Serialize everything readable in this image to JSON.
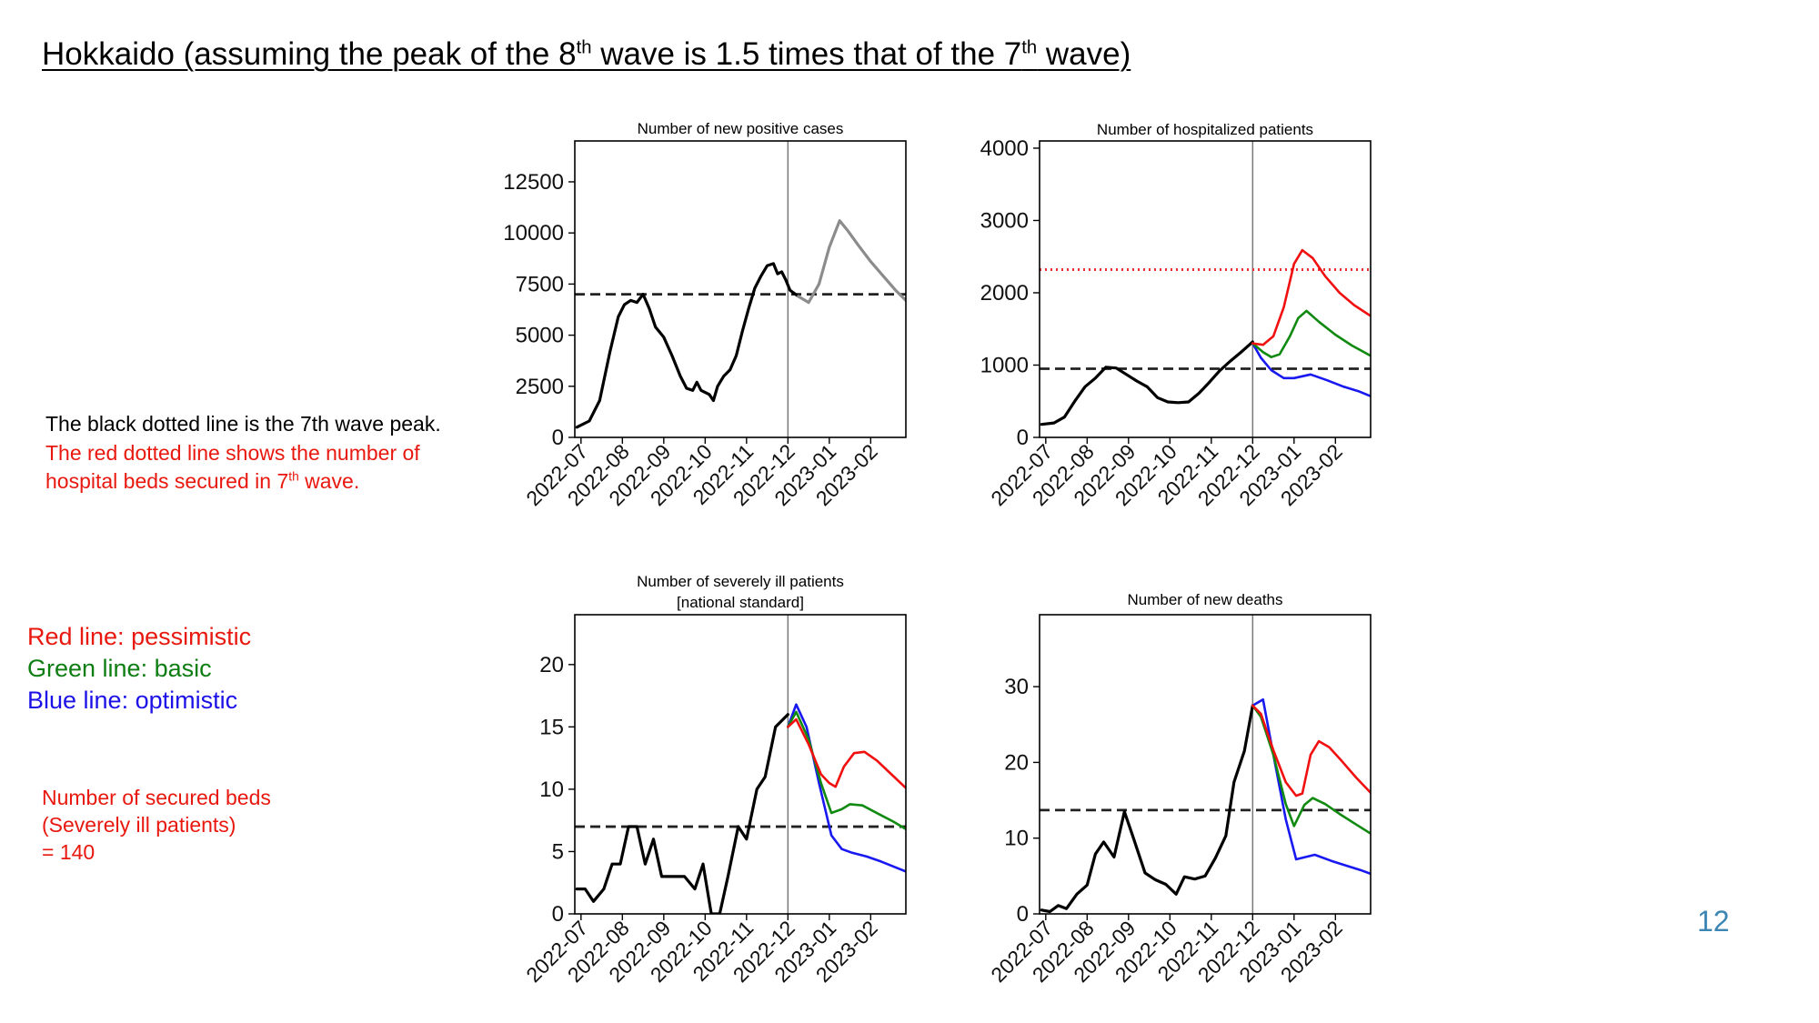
{
  "slide": {
    "title_pre": "Hokkaido (assuming the peak of the 8",
    "title_sup1": "th",
    "title_mid": " wave is 1.5 times that of the 7",
    "title_sup2": "th",
    "title_post": " wave)",
    "page_number": "12"
  },
  "notes": {
    "black_line": "The black dotted line is the 7th wave peak.",
    "red_line_1": "The red dotted line shows the number of",
    "red_line_2_pre": "hospital beds secured in 7",
    "red_line_2_sup": "th",
    "red_line_2_post": " wave."
  },
  "legend": {
    "red": "Red line: pessimistic",
    "green": "Green line: basic",
    "blue": "Blue line: optimistic"
  },
  "beds_note": {
    "line1": "Number of secured beds",
    "line2": "(Severely ill patients)",
    "line3": "= 140"
  },
  "colors": {
    "observed": "#000000",
    "projection_gray": "#8c8c8c",
    "pessimistic": "#f01010",
    "basic": "#108a10",
    "optimistic": "#1818f0",
    "reference_dashed": "#222222",
    "beds_dotted": "#f03030"
  },
  "chart_data": [
    {
      "id": "positive",
      "type": "line",
      "title": [
        "Number of new positive cases"
      ],
      "x_ticks": [
        "2022-07",
        "2022-08",
        "2022-09",
        "2022-10",
        "2022-11",
        "2022-12",
        "2023-01",
        "2023-02"
      ],
      "x_range": [
        -0.15,
        7.85
      ],
      "divider_x": 5.0,
      "y_ticks": [
        "0",
        "2500",
        "5000",
        "7500",
        "10000",
        "12500"
      ],
      "y_tick_values": [
        0,
        2500,
        5000,
        7500,
        10000,
        12500
      ],
      "ylim": [
        0,
        14500
      ],
      "reference_line": 7000,
      "series": [
        {
          "role": "observed",
          "points": [
            [
              -0.1,
              500
            ],
            [
              0.2,
              800
            ],
            [
              0.45,
              1800
            ],
            [
              0.7,
              4200
            ],
            [
              0.9,
              5900
            ],
            [
              1.05,
              6500
            ],
            [
              1.2,
              6700
            ],
            [
              1.35,
              6600
            ],
            [
              1.5,
              7000
            ],
            [
              1.65,
              6300
            ],
            [
              1.8,
              5400
            ],
            [
              2.0,
              4900
            ],
            [
              2.2,
              4000
            ],
            [
              2.4,
              3000
            ],
            [
              2.55,
              2400
            ],
            [
              2.7,
              2300
            ],
            [
              2.8,
              2700
            ],
            [
              2.9,
              2300
            ],
            [
              3.1,
              2100
            ],
            [
              3.2,
              1800
            ],
            [
              3.3,
              2500
            ],
            [
              3.45,
              3000
            ],
            [
              3.6,
              3300
            ],
            [
              3.75,
              4000
            ],
            [
              3.9,
              5200
            ],
            [
              4.05,
              6300
            ],
            [
              4.2,
              7300
            ],
            [
              4.35,
              7900
            ],
            [
              4.5,
              8400
            ],
            [
              4.65,
              8500
            ],
            [
              4.75,
              8000
            ],
            [
              4.85,
              8100
            ],
            [
              4.95,
              7700
            ],
            [
              5.05,
              7200
            ],
            [
              5.25,
              6900
            ]
          ]
        },
        {
          "role": "projection",
          "points": [
            [
              5.25,
              6900
            ],
            [
              5.5,
              6600
            ],
            [
              5.75,
              7500
            ],
            [
              6.0,
              9300
            ],
            [
              6.25,
              10600
            ],
            [
              6.45,
              10100
            ],
            [
              6.7,
              9400
            ],
            [
              7.0,
              8600
            ],
            [
              7.3,
              7900
            ],
            [
              7.6,
              7200
            ],
            [
              7.85,
              6700
            ]
          ]
        }
      ]
    },
    {
      "id": "hospitalized",
      "type": "line",
      "title": [
        "Number of hospitalized patients"
      ],
      "x_ticks": [
        "2022-07",
        "2022-08",
        "2022-09",
        "2022-10",
        "2022-11",
        "2022-12",
        "2023-01",
        "2023-02"
      ],
      "x_range": [
        -0.15,
        7.85
      ],
      "divider_x": 5.0,
      "y_ticks": [
        "0",
        "1000",
        "2000",
        "3000",
        "4000"
      ],
      "y_tick_values": [
        0,
        1000,
        2000,
        3000,
        4000
      ],
      "ylim": [
        0,
        4100
      ],
      "reference_line": 950,
      "beds_line": 2320,
      "series": [
        {
          "role": "observed",
          "points": [
            [
              -0.1,
              180
            ],
            [
              0.2,
              200
            ],
            [
              0.45,
              280
            ],
            [
              0.7,
              500
            ],
            [
              0.95,
              700
            ],
            [
              1.2,
              820
            ],
            [
              1.45,
              970
            ],
            [
              1.7,
              960
            ],
            [
              1.95,
              870
            ],
            [
              2.2,
              780
            ],
            [
              2.45,
              700
            ],
            [
              2.7,
              550
            ],
            [
              2.95,
              490
            ],
            [
              3.2,
              480
            ],
            [
              3.45,
              490
            ],
            [
              3.7,
              610
            ],
            [
              3.95,
              760
            ],
            [
              4.2,
              920
            ],
            [
              4.45,
              1050
            ],
            [
              4.7,
              1170
            ],
            [
              5.0,
              1320
            ]
          ]
        },
        {
          "role": "pessimistic",
          "points": [
            [
              5.0,
              1300
            ],
            [
              5.25,
              1280
            ],
            [
              5.5,
              1400
            ],
            [
              5.75,
              1800
            ],
            [
              6.0,
              2400
            ],
            [
              6.2,
              2590
            ],
            [
              6.45,
              2480
            ],
            [
              6.75,
              2230
            ],
            [
              7.1,
              2000
            ],
            [
              7.45,
              1830
            ],
            [
              7.85,
              1680
            ]
          ]
        },
        {
          "role": "basic",
          "points": [
            [
              5.0,
              1300
            ],
            [
              5.25,
              1180
            ],
            [
              5.45,
              1110
            ],
            [
              5.65,
              1150
            ],
            [
              5.9,
              1400
            ],
            [
              6.1,
              1650
            ],
            [
              6.3,
              1750
            ],
            [
              6.6,
              1600
            ],
            [
              7.0,
              1420
            ],
            [
              7.4,
              1270
            ],
            [
              7.85,
              1130
            ]
          ]
        },
        {
          "role": "optimistic",
          "points": [
            [
              5.0,
              1300
            ],
            [
              5.2,
              1100
            ],
            [
              5.45,
              930
            ],
            [
              5.75,
              820
            ],
            [
              6.0,
              820
            ],
            [
              6.4,
              870
            ],
            [
              6.8,
              790
            ],
            [
              7.2,
              700
            ],
            [
              7.55,
              640
            ],
            [
              7.85,
              570
            ]
          ]
        }
      ]
    },
    {
      "id": "severe",
      "type": "line",
      "title": [
        "Number of severely ill patients",
        "[national standard]"
      ],
      "x_ticks": [
        "2022-07",
        "2022-08",
        "2022-09",
        "2022-10",
        "2022-11",
        "2022-12",
        "2023-01",
        "2023-02"
      ],
      "x_range": [
        -0.15,
        7.85
      ],
      "divider_x": 5.0,
      "y_ticks": [
        "0",
        "5",
        "10",
        "15",
        "20"
      ],
      "y_tick_values": [
        0,
        5,
        10,
        15,
        20
      ],
      "ylim": [
        0,
        24
      ],
      "reference_line": 7,
      "series": [
        {
          "role": "observed",
          "points": [
            [
              -0.1,
              2
            ],
            [
              0.1,
              2
            ],
            [
              0.3,
              1
            ],
            [
              0.55,
              2
            ],
            [
              0.75,
              4
            ],
            [
              0.95,
              4
            ],
            [
              1.15,
              7
            ],
            [
              1.35,
              7
            ],
            [
              1.55,
              4
            ],
            [
              1.75,
              6
            ],
            [
              1.95,
              3
            ],
            [
              2.2,
              3
            ],
            [
              2.5,
              3
            ],
            [
              2.75,
              2
            ],
            [
              2.95,
              4
            ],
            [
              3.15,
              0
            ],
            [
              3.35,
              0
            ],
            [
              3.55,
              3
            ],
            [
              3.8,
              7
            ],
            [
              4.0,
              6
            ],
            [
              4.25,
              10
            ],
            [
              4.45,
              11
            ],
            [
              4.7,
              15
            ],
            [
              5.0,
              16
            ]
          ]
        },
        {
          "role": "pessimistic",
          "points": [
            [
              5.0,
              15
            ],
            [
              5.2,
              15.6
            ],
            [
              5.5,
              13.6
            ],
            [
              5.8,
              11.2
            ],
            [
              6.0,
              10.5
            ],
            [
              6.15,
              10.2
            ],
            [
              6.35,
              11.8
            ],
            [
              6.6,
              12.9
            ],
            [
              6.85,
              13.0
            ],
            [
              7.15,
              12.3
            ],
            [
              7.5,
              11.2
            ],
            [
              7.85,
              10.1
            ]
          ]
        },
        {
          "role": "basic",
          "points": [
            [
              5.0,
              15
            ],
            [
              5.2,
              16.2
            ],
            [
              5.5,
              14
            ],
            [
              5.8,
              10.5
            ],
            [
              6.05,
              8.1
            ],
            [
              6.3,
              8.4
            ],
            [
              6.5,
              8.8
            ],
            [
              6.8,
              8.7
            ],
            [
              7.2,
              8.0
            ],
            [
              7.55,
              7.4
            ],
            [
              7.85,
              6.8
            ]
          ]
        },
        {
          "role": "optimistic",
          "points": [
            [
              5.0,
              15
            ],
            [
              5.2,
              16.8
            ],
            [
              5.45,
              15
            ],
            [
              5.75,
              10.5
            ],
            [
              6.05,
              6.3
            ],
            [
              6.3,
              5.2
            ],
            [
              6.55,
              4.9
            ],
            [
              6.9,
              4.6
            ],
            [
              7.25,
              4.2
            ],
            [
              7.55,
              3.8
            ],
            [
              7.85,
              3.4
            ]
          ]
        }
      ]
    },
    {
      "id": "deaths",
      "type": "line",
      "title": [
        "Number of new deaths"
      ],
      "x_ticks": [
        "2022-07",
        "2022-08",
        "2022-09",
        "2022-10",
        "2022-11",
        "2022-12",
        "2023-01",
        "2023-02"
      ],
      "x_range": [
        -0.15,
        7.85
      ],
      "divider_x": 5.0,
      "y_ticks": [
        "0",
        "10",
        "20",
        "30"
      ],
      "y_tick_values": [
        0,
        10,
        20,
        30
      ],
      "ylim": [
        0,
        39.5
      ],
      "reference_line": 13.7,
      "series": [
        {
          "role": "observed",
          "points": [
            [
              -0.1,
              0.5
            ],
            [
              0.1,
              0.3
            ],
            [
              0.3,
              1.1
            ],
            [
              0.5,
              0.7
            ],
            [
              0.75,
              2.6
            ],
            [
              1.0,
              3.8
            ],
            [
              1.2,
              7.9
            ],
            [
              1.4,
              9.5
            ],
            [
              1.65,
              7.5
            ],
            [
              1.9,
              13.5
            ],
            [
              2.1,
              10.3
            ],
            [
              2.4,
              5.4
            ],
            [
              2.65,
              4.5
            ],
            [
              2.9,
              3.9
            ],
            [
              3.15,
              2.6
            ],
            [
              3.35,
              4.9
            ],
            [
              3.6,
              4.6
            ],
            [
              3.85,
              5.0
            ],
            [
              4.1,
              7.4
            ],
            [
              4.35,
              10.3
            ],
            [
              4.55,
              17.4
            ],
            [
              4.8,
              21.5
            ],
            [
              5.0,
              27.5
            ]
          ]
        },
        {
          "role": "pessimistic",
          "points": [
            [
              5.0,
              27.5
            ],
            [
              5.2,
              26.4
            ],
            [
              5.5,
              21.6
            ],
            [
              5.8,
              17.4
            ],
            [
              6.05,
              15.6
            ],
            [
              6.2,
              15.9
            ],
            [
              6.4,
              21.0
            ],
            [
              6.6,
              22.8
            ],
            [
              6.85,
              22.0
            ],
            [
              7.15,
              20.2
            ],
            [
              7.5,
              18.0
            ],
            [
              7.85,
              16.0
            ]
          ]
        },
        {
          "role": "basic",
          "points": [
            [
              5.0,
              27.5
            ],
            [
              5.2,
              26.0
            ],
            [
              5.5,
              21.0
            ],
            [
              5.8,
              14.5
            ],
            [
              6.0,
              11.6
            ],
            [
              6.25,
              14.4
            ],
            [
              6.45,
              15.3
            ],
            [
              6.75,
              14.5
            ],
            [
              7.1,
              13.2
            ],
            [
              7.5,
              11.8
            ],
            [
              7.85,
              10.6
            ]
          ]
        },
        {
          "role": "optimistic",
          "points": [
            [
              5.0,
              27.5
            ],
            [
              5.25,
              28.3
            ],
            [
              5.5,
              21.0
            ],
            [
              5.8,
              12.5
            ],
            [
              6.05,
              7.2
            ],
            [
              6.5,
              7.8
            ],
            [
              6.9,
              7.0
            ],
            [
              7.3,
              6.3
            ],
            [
              7.6,
              5.8
            ],
            [
              7.85,
              5.3
            ]
          ]
        }
      ]
    }
  ]
}
